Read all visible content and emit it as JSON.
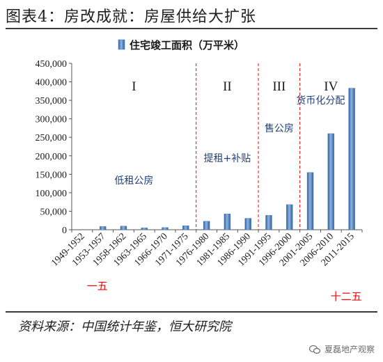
{
  "page": {
    "title": "图表4：房改成就：房屋供给大扩张",
    "source": "资料来源：中国统计年鉴，恒大研究院",
    "watermark": "夏磊地产观察",
    "accent": "#ff0000",
    "bar_color": "#4a7ebb",
    "rule_color": "#3a3a3a"
  },
  "chart_data": {
    "type": "bar",
    "legend": {
      "label": "住宅竣工面积（万平米）",
      "position": "top"
    },
    "categories": [
      "1949-1952",
      "1953-1957",
      "1958-1962",
      "1963-1965",
      "1966-1970",
      "1971-1975",
      "1976-1980",
      "1981-1985",
      "1986-1990",
      "1991-1995",
      "1996-2000",
      "2001-2005",
      "2006-2010",
      "2011-2015"
    ],
    "series": [
      {
        "name": "住宅竣工面积（万平米）",
        "values": [
          0,
          9000,
          10000,
          5000,
          6000,
          11000,
          23000,
          43000,
          31000,
          39000,
          68000,
          155000,
          260000,
          383000
        ]
      }
    ],
    "ylim": [
      0,
      450000
    ],
    "yticks": [
      0,
      50000,
      100000,
      150000,
      200000,
      250000,
      300000,
      350000,
      400000,
      450000
    ],
    "ytick_labels": [
      "0",
      "50,000",
      "100,000",
      "150,000",
      "200,000",
      "250,000",
      "300,000",
      "350,000",
      "400,000",
      "450,000"
    ],
    "grid": false,
    "phases": [
      {
        "label": "I",
        "annotation": "低租公房"
      },
      {
        "label": "II",
        "annotation": "提租+补贴"
      },
      {
        "label": "III",
        "annotation": "售公房"
      },
      {
        "label": "IV",
        "annotation": "货币化分配"
      }
    ],
    "dividers_after_category": [
      "1971-1975",
      "1986-1990",
      "1996-2000"
    ],
    "plan_markers": [
      {
        "label": "一五",
        "category": "1953-1957"
      },
      {
        "label": "十二五",
        "category": "2011-2015"
      }
    ]
  }
}
